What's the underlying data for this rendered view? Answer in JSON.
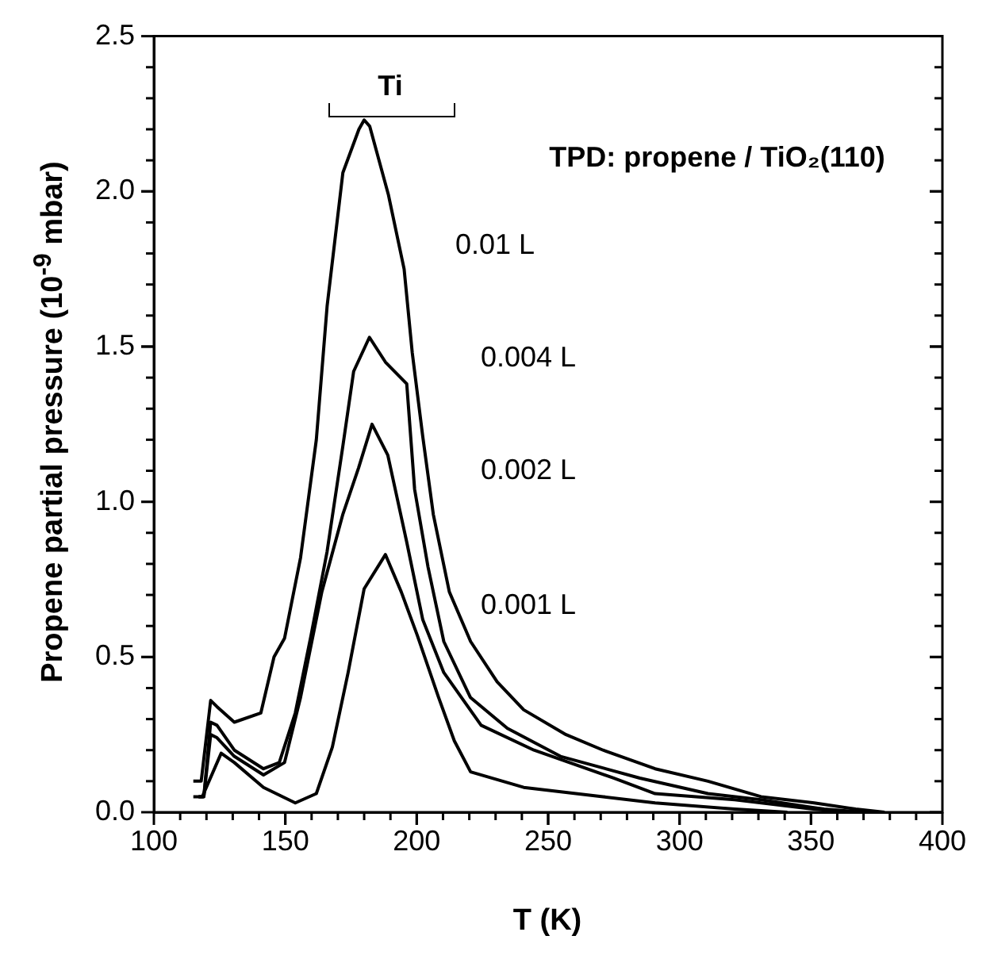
{
  "chart_data": {
    "type": "line",
    "xlabel": "T (K)",
    "ylabel": "Propene partial pressure (10$^{-9}$ mbar)",
    "xlim": [
      100,
      400
    ],
    "xticks": [
      100,
      150,
      200,
      250,
      300,
      350,
      400
    ],
    "ylim": [
      0,
      2.5
    ],
    "yticks": [
      {
        "value": 0,
        "label": "0.0"
      },
      {
        "value": 0.5,
        "label": "0.5"
      },
      {
        "value": 1,
        "label": "1.0"
      },
      {
        "value": 1.5,
        "label": "1.5"
      },
      {
        "value": 2,
        "label": "2.0"
      },
      {
        "value": 2.5,
        "label": "2.5"
      }
    ],
    "grid": false,
    "legend": false,
    "marker": "none",
    "line_style": "solid",
    "series": [
      {
        "color": "#000000",
        "x": [
          115,
          118,
          121.6,
          124,
          130.6,
          140.7,
          145.7,
          149.7,
          155.8,
          161.8,
          165.9,
          171.9,
          178,
          180,
          182.1,
          189.2,
          195.2,
          198.3,
          202.3,
          206.3,
          212.4,
          220.5,
          230.6,
          240.7,
          256.8,
          270.9,
          290.7,
          310.8,
          331,
          351.2,
          367,
          378
        ],
        "values": [
          0.1,
          0.1,
          0.36,
          0.34,
          0.29,
          0.32,
          0.5,
          0.56,
          0.82,
          1.2,
          1.63,
          2.06,
          2.2,
          2.23,
          2.21,
          1.99,
          1.75,
          1.48,
          1.21,
          0.96,
          0.71,
          0.55,
          0.42,
          0.33,
          0.25,
          0.2,
          0.14,
          0.1,
          0.05,
          0.03,
          0.01,
          0
        ]
      },
      {
        "color": "#000000",
        "x": [
          117,
          119,
          121.6,
          124,
          130.6,
          141.7,
          147.7,
          153.8,
          159.8,
          165.9,
          171.9,
          176,
          182,
          188.1,
          196.2,
          199.2,
          204.3,
          210.3,
          220.4,
          234.5,
          254.7,
          284.9,
          310.8,
          331,
          355,
          370
        ],
        "values": [
          0.05,
          0.05,
          0.29,
          0.28,
          0.2,
          0.14,
          0.16,
          0.32,
          0.57,
          0.84,
          1.18,
          1.42,
          1.53,
          1.45,
          1.38,
          1.04,
          0.79,
          0.55,
          0.37,
          0.27,
          0.18,
          0.11,
          0.06,
          0.04,
          0.01,
          0
        ]
      },
      {
        "color": "#000000",
        "x": [
          117,
          119,
          121.6,
          124,
          130.6,
          141.7,
          149.7,
          155.8,
          163.9,
          171.9,
          177.9,
          183,
          189,
          196.2,
          202.3,
          210.3,
          224.5,
          244.6,
          274.9,
          290.7,
          321,
          351,
          365
        ],
        "values": [
          0.05,
          0.05,
          0.25,
          0.24,
          0.18,
          0.12,
          0.16,
          0.37,
          0.71,
          0.96,
          1.11,
          1.25,
          1.15,
          0.87,
          0.62,
          0.45,
          0.28,
          0.2,
          0.11,
          0.06,
          0.04,
          0.01,
          0
        ]
      },
      {
        "color": "#000000",
        "x": [
          115,
          118.4,
          125.6,
          130.6,
          141.7,
          153.8,
          161.8,
          167.9,
          173.9,
          180,
          188.1,
          194.1,
          200.2,
          208.3,
          214.3,
          220.5,
          240.7,
          270.9,
          290.7,
          321,
          341
        ],
        "values": [
          0.05,
          0.05,
          0.19,
          0.16,
          0.08,
          0.03,
          0.06,
          0.21,
          0.45,
          0.72,
          0.83,
          0.71,
          0.57,
          0.37,
          0.23,
          0.13,
          0.08,
          0.05,
          0.03,
          0.01,
          0
        ]
      }
    ],
    "annotations": [
      "TPD: propene / TiO₂(110)",
      "Ti",
      "0.01 L",
      "0.004 L",
      "0.002 L",
      "0.001 L"
    ]
  }
}
